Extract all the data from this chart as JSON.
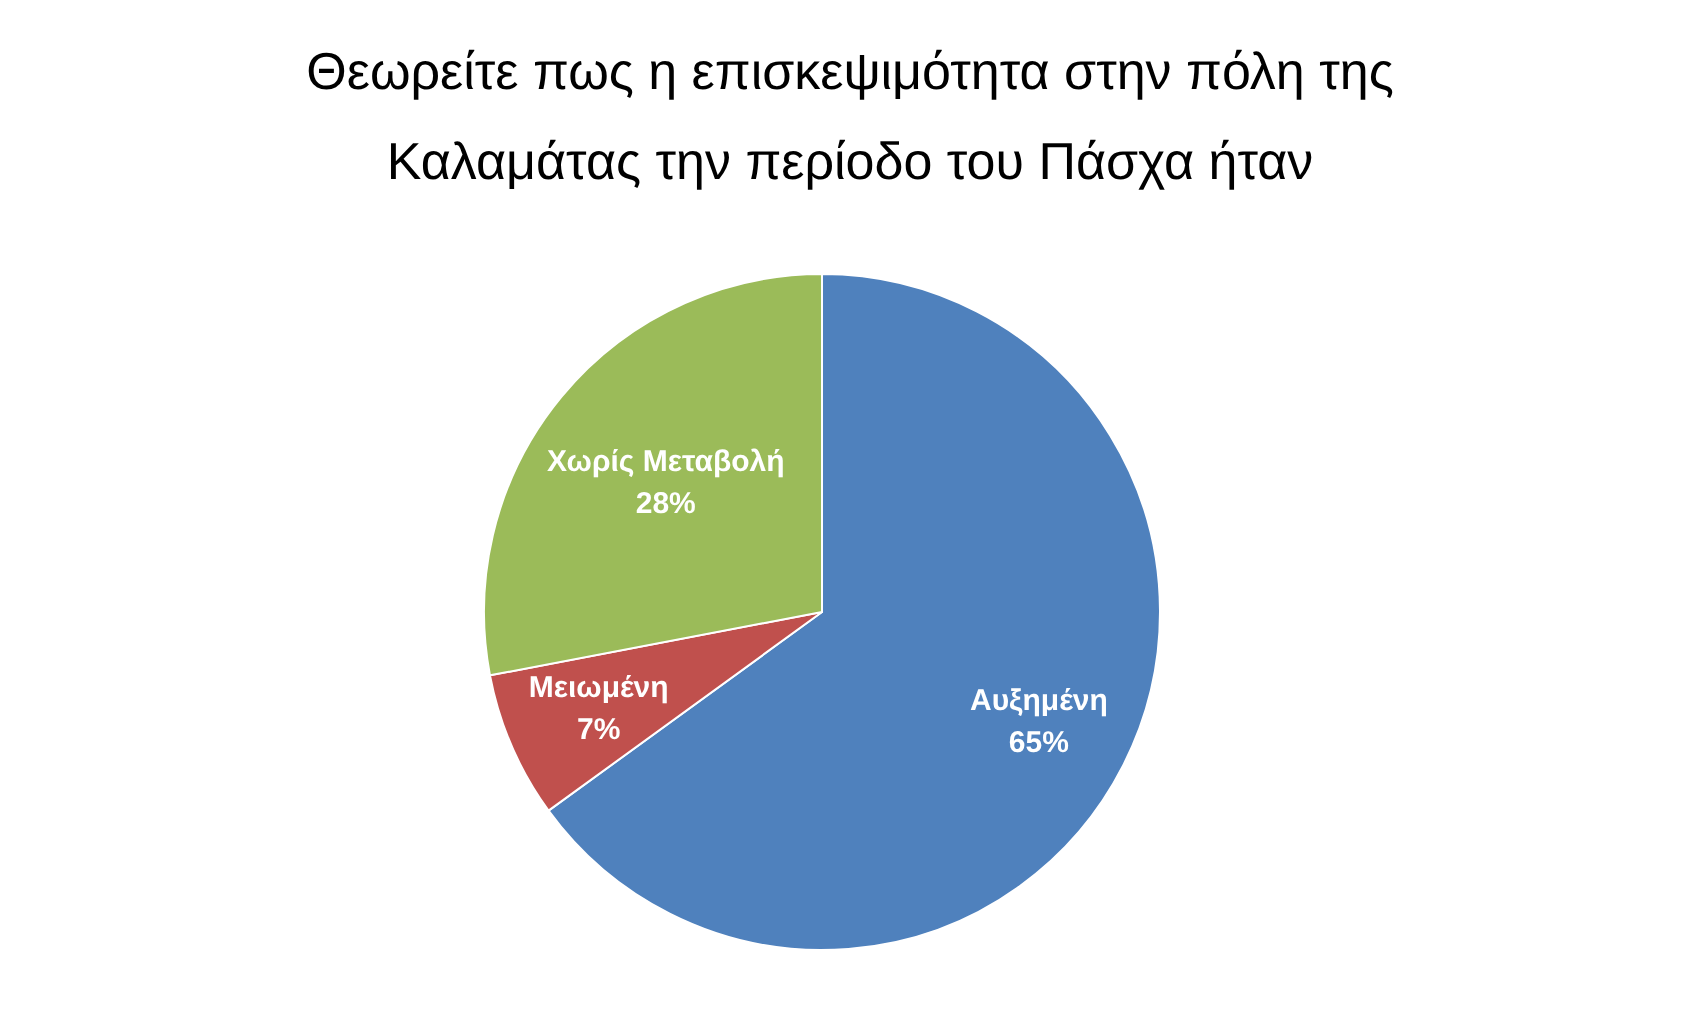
{
  "chart_data": {
    "type": "pie",
    "title": "Θεωρείτε πως η επισκεψιμότητα στην πόλη της Καλαμάτας την περίοδο του Πάσχα ήταν",
    "categories": [
      "Αυξημένη",
      "Μειωμένη",
      "Χωρίς Μεταβολή"
    ],
    "values": [
      65,
      7,
      28
    ],
    "colors": [
      "#4f81bd",
      "#c0504d",
      "#9bbb59"
    ],
    "value_labels": [
      "65%",
      "7%",
      "28%"
    ]
  }
}
